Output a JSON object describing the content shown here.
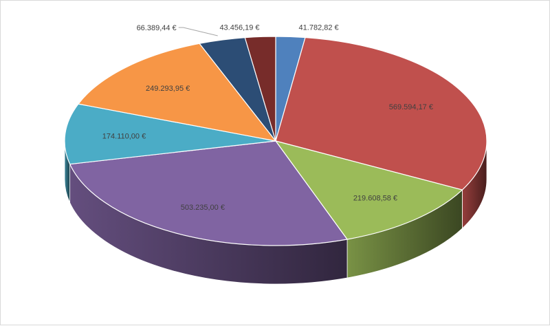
{
  "chart_data": {
    "type": "pie",
    "style": "3d",
    "title": "",
    "slices": [
      {
        "label": "41.782,82 €",
        "value": 41782.82,
        "color": "#4f81bd"
      },
      {
        "label": "569.594,17 €",
        "value": 569594.17,
        "color": "#c0504d"
      },
      {
        "label": "219.608,58 €",
        "value": 219608.58,
        "color": "#9bbb59"
      },
      {
        "label": "503.235,00 €",
        "value": 503235.0,
        "color": "#8064a2"
      },
      {
        "label": "174.110,00 €",
        "value": 174110.0,
        "color": "#4bacc6"
      },
      {
        "label": "249.293,95 €",
        "value": 249293.95,
        "color": "#f79646"
      },
      {
        "label": "66.389,44 €",
        "value": 66389.44,
        "color": "#2c4d75"
      },
      {
        "label": "43.456,19 €",
        "value": 43456.19,
        "color": "#772c2a"
      }
    ]
  }
}
